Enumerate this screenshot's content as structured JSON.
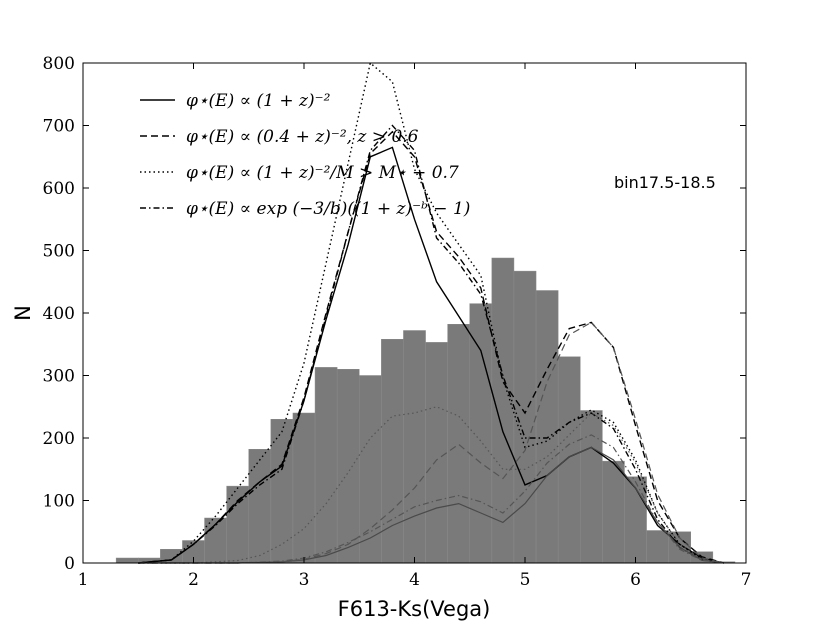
{
  "chart_data": {
    "type": "bar",
    "title": "",
    "xlabel": "F613-Ks(Vega)",
    "ylabel": "N",
    "xlim": [
      1,
      7
    ],
    "ylim": [
      0,
      800
    ],
    "xticks": [
      "1",
      "2",
      "3",
      "4",
      "5",
      "6",
      "7"
    ],
    "yticks": [
      "0",
      "100",
      "200",
      "300",
      "400",
      "500",
      "600",
      "700",
      "800"
    ],
    "annotation": "bin17.5-18.5",
    "histogram": {
      "color": "#777777",
      "bin_width": 0.2,
      "bin_edges_start": 1.0,
      "values": [
        0,
        0,
        0,
        0,
        0,
        0,
        0,
        0,
        0,
        0,
        0,
        0,
        0,
        0,
        0,
        0,
        0,
        0,
        0,
        0,
        0,
        0,
        0,
        0,
        0,
        0,
        0,
        0,
        0,
        0
      ]
    },
    "histogram_bars": [
      {
        "x0": 1.3,
        "x1": 1.5,
        "v": 8
      },
      {
        "x0": 1.5,
        "x1": 1.7,
        "v": 8
      },
      {
        "x0": 1.7,
        "x1": 1.9,
        "v": 22
      },
      {
        "x0": 1.9,
        "x1": 2.1,
        "v": 36
      },
      {
        "x0": 2.1,
        "x1": 2.3,
        "v": 72
      },
      {
        "x0": 2.3,
        "x1": 2.5,
        "v": 123
      },
      {
        "x0": 2.5,
        "x1": 2.7,
        "v": 182
      },
      {
        "x0": 2.7,
        "x1": 2.9,
        "v": 230
      },
      {
        "x0": 2.9,
        "x1": 3.1,
        "v": 240
      },
      {
        "x0": 3.1,
        "x1": 3.3,
        "v": 313
      },
      {
        "x0": 3.3,
        "x1": 3.5,
        "v": 310
      },
      {
        "x0": 3.5,
        "x1": 3.7,
        "v": 300
      },
      {
        "x0": 3.7,
        "x1": 3.9,
        "v": 358
      },
      {
        "x0": 3.9,
        "x1": 4.1,
        "v": 372
      },
      {
        "x0": 4.1,
        "x1": 4.3,
        "v": 353
      },
      {
        "x0": 4.3,
        "x1": 4.5,
        "v": 382
      },
      {
        "x0": 4.5,
        "x1": 4.7,
        "v": 415
      },
      {
        "x0": 4.7,
        "x1": 4.9,
        "v": 488
      },
      {
        "x0": 4.9,
        "x1": 5.1,
        "v": 467
      },
      {
        "x0": 5.1,
        "x1": 5.3,
        "v": 436
      },
      {
        "x0": 5.3,
        "x1": 5.5,
        "v": 330
      },
      {
        "x0": 5.5,
        "x1": 5.7,
        "v": 244
      },
      {
        "x0": 5.7,
        "x1": 5.9,
        "v": 163
      },
      {
        "x0": 5.9,
        "x1": 6.1,
        "v": 138
      },
      {
        "x0": 6.1,
        "x1": 6.3,
        "v": 52
      },
      {
        "x0": 6.3,
        "x1": 6.5,
        "v": 50
      },
      {
        "x0": 6.5,
        "x1": 6.7,
        "v": 18
      },
      {
        "x0": 6.7,
        "x1": 6.9,
        "v": 2
      }
    ],
    "series": [
      {
        "name": "φ⋆(E) ∝ (1 + z)⁻²",
        "style": "solid",
        "color": "#000000",
        "x": [
          1.5,
          1.8,
          2.0,
          2.2,
          2.4,
          2.6,
          2.8,
          3.0,
          3.2,
          3.4,
          3.6,
          3.8,
          4.0,
          4.2,
          4.4,
          4.6,
          4.8,
          5.0,
          5.2,
          5.4,
          5.6,
          5.8,
          6.0,
          6.2,
          6.4,
          6.6,
          6.8
        ],
        "y": [
          0,
          5,
          30,
          62,
          98,
          130,
          155,
          260,
          390,
          510,
          650,
          665,
          550,
          450,
          395,
          340,
          210,
          125,
          140,
          170,
          185,
          160,
          120,
          60,
          30,
          8,
          0
        ]
      },
      {
        "name": "φ⋆(E) ∝ (0.4 + z)⁻², z > 0.6",
        "style": "dashed",
        "color": "#000000",
        "x": [
          1.5,
          1.8,
          2.0,
          2.2,
          2.4,
          2.6,
          2.8,
          3.0,
          3.2,
          3.4,
          3.6,
          3.8,
          4.0,
          4.2,
          4.4,
          4.6,
          4.8,
          5.0,
          5.2,
          5.4,
          5.6,
          5.8,
          6.0,
          6.2,
          6.4,
          6.6,
          6.8
        ],
        "y": [
          0,
          5,
          30,
          62,
          100,
          130,
          158,
          265,
          400,
          530,
          655,
          690,
          650,
          530,
          490,
          440,
          290,
          240,
          310,
          375,
          385,
          345,
          220,
          100,
          40,
          10,
          0
        ]
      },
      {
        "name": "φ⋆(E) ∝ (1 + z)⁻², M > M⋆ − 0.7",
        "style": "dotted",
        "color": "#000000",
        "x": [
          1.5,
          1.8,
          2.0,
          2.2,
          2.4,
          2.6,
          2.8,
          3.0,
          3.2,
          3.4,
          3.6,
          3.8,
          4.0,
          4.2,
          4.4,
          4.6,
          4.8,
          5.0,
          5.2,
          5.4,
          5.6,
          5.8,
          6.0,
          6.2,
          6.4,
          6.6,
          6.8
        ],
        "y": [
          0,
          5,
          35,
          75,
          120,
          165,
          210,
          320,
          480,
          640,
          800,
          770,
          630,
          560,
          510,
          460,
          295,
          185,
          195,
          225,
          245,
          225,
          165,
          80,
          30,
          6,
          0
        ]
      },
      {
        "name": "φ⋆(E) ∝ exp(−3/b)((1 + z)⁻ᵇ − 1)",
        "style": "dashdot",
        "color": "#000000",
        "x": [
          1.5,
          1.8,
          2.0,
          2.2,
          2.4,
          2.6,
          2.8,
          3.0,
          3.2,
          3.4,
          3.6,
          3.8,
          4.0,
          4.2,
          4.4,
          4.6,
          4.8,
          5.0,
          5.2,
          5.4,
          5.6,
          5.8,
          6.0,
          6.2,
          6.4,
          6.6,
          6.8
        ],
        "y": [
          0,
          5,
          30,
          60,
          95,
          125,
          150,
          260,
          395,
          530,
          660,
          700,
          660,
          520,
          480,
          430,
          300,
          200,
          200,
          225,
          240,
          215,
          150,
          70,
          25,
          5,
          0
        ]
      },
      {
        "name": "",
        "style": "solid",
        "color": "#4a4a4a",
        "x": [
          1.5,
          2.0,
          2.4,
          2.8,
          3.0,
          3.2,
          3.4,
          3.6,
          3.8,
          4.0,
          4.2,
          4.4,
          4.6,
          4.8,
          5.0,
          5.2,
          5.4,
          5.6,
          5.8,
          6.0,
          6.2,
          6.4,
          6.6,
          6.8
        ],
        "y": [
          0,
          0,
          0,
          2,
          5,
          12,
          25,
          40,
          60,
          75,
          88,
          95,
          80,
          65,
          95,
          140,
          170,
          185,
          165,
          120,
          65,
          25,
          5,
          0
        ]
      },
      {
        "name": "",
        "style": "dashed",
        "color": "#555555",
        "x": [
          1.5,
          2.0,
          2.4,
          2.8,
          3.0,
          3.2,
          3.4,
          3.6,
          3.8,
          4.0,
          4.2,
          4.4,
          4.6,
          4.8,
          5.0,
          5.2,
          5.4,
          5.6,
          5.8,
          6.0,
          6.2,
          6.4,
          6.6,
          6.8
        ],
        "y": [
          0,
          0,
          0,
          2,
          6,
          15,
          30,
          55,
          85,
          120,
          165,
          190,
          160,
          135,
          180,
          290,
          365,
          385,
          345,
          230,
          110,
          40,
          8,
          0
        ]
      },
      {
        "name": "",
        "style": "dotted",
        "color": "#555555",
        "x": [
          1.5,
          2.0,
          2.4,
          2.6,
          2.8,
          3.0,
          3.2,
          3.4,
          3.6,
          3.8,
          4.0,
          4.2,
          4.4,
          4.6,
          4.8,
          5.0,
          5.2,
          5.4,
          5.6,
          5.8,
          6.0,
          6.2,
          6.4,
          6.6,
          6.8
        ],
        "y": [
          0,
          0,
          4,
          12,
          30,
          55,
          95,
          145,
          200,
          235,
          240,
          250,
          235,
          195,
          150,
          150,
          170,
          205,
          240,
          220,
          160,
          80,
          30,
          6,
          0
        ]
      },
      {
        "name": "",
        "style": "dashdot",
        "color": "#555555",
        "x": [
          1.5,
          2.0,
          2.4,
          2.8,
          3.0,
          3.2,
          3.4,
          3.6,
          3.8,
          4.0,
          4.2,
          4.4,
          4.6,
          4.8,
          5.0,
          5.2,
          5.4,
          5.6,
          5.8,
          6.0,
          6.2,
          6.4,
          6.6,
          6.8
        ],
        "y": [
          0,
          0,
          0,
          3,
          8,
          18,
          33,
          50,
          70,
          90,
          100,
          108,
          98,
          80,
          115,
          160,
          190,
          205,
          185,
          130,
          65,
          22,
          4,
          0
        ]
      }
    ],
    "legend": {
      "placement": "top-left",
      "entries": [
        {
          "style": "solid",
          "label": "φ⋆(E) ∝ (1 + z)⁻²"
        },
        {
          "style": "dashed",
          "label": "φ⋆(E) ∝ (0.4 + z)⁻², z > 0.6"
        },
        {
          "style": "dotted",
          "label": "φ⋆(E) ∝ (1 + z)⁻²/M > M⋆ − 0.7"
        },
        {
          "style": "dashdot",
          "label": "φ⋆(E) ∝ exp (−3/b)((1 + z)⁻ᵇ − 1)"
        }
      ]
    },
    "grid": false
  }
}
